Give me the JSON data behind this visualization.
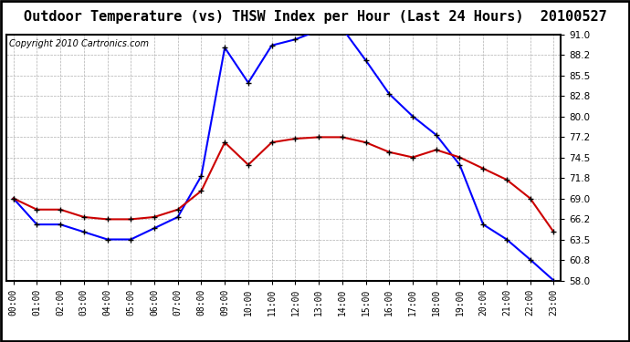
{
  "title": "Outdoor Temperature (vs) THSW Index per Hour (Last 24 Hours)  20100527",
  "copyright": "Copyright 2010 Cartronics.com",
  "hours": [
    0,
    1,
    2,
    3,
    4,
    5,
    6,
    7,
    8,
    9,
    10,
    11,
    12,
    13,
    14,
    15,
    16,
    17,
    18,
    19,
    20,
    21,
    22,
    23
  ],
  "thsw": [
    69.0,
    65.5,
    65.5,
    64.5,
    63.5,
    63.5,
    65.0,
    66.5,
    72.0,
    89.2,
    84.5,
    89.5,
    90.3,
    91.5,
    91.8,
    87.5,
    83.0,
    80.0,
    77.5,
    73.5,
    65.5,
    63.5,
    60.8,
    58.0
  ],
  "temp": [
    69.0,
    67.5,
    67.5,
    66.5,
    66.2,
    66.2,
    66.5,
    67.5,
    70.0,
    76.5,
    73.5,
    76.5,
    77.0,
    77.2,
    77.2,
    76.5,
    75.2,
    74.5,
    75.5,
    74.5,
    73.0,
    71.5,
    69.0,
    64.5
  ],
  "thsw_color": "#0000ff",
  "temp_color": "#cc0000",
  "bg_color": "#ffffff",
  "grid_color": "#b0b0b0",
  "ylim_min": 58.0,
  "ylim_max": 91.0,
  "yticks": [
    58.0,
    60.8,
    63.5,
    66.2,
    69.0,
    71.8,
    74.5,
    77.2,
    80.0,
    82.8,
    85.5,
    88.2,
    91.0
  ],
  "title_fontsize": 11,
  "copyright_fontsize": 7,
  "marker_size": 4,
  "line_width": 1.5
}
